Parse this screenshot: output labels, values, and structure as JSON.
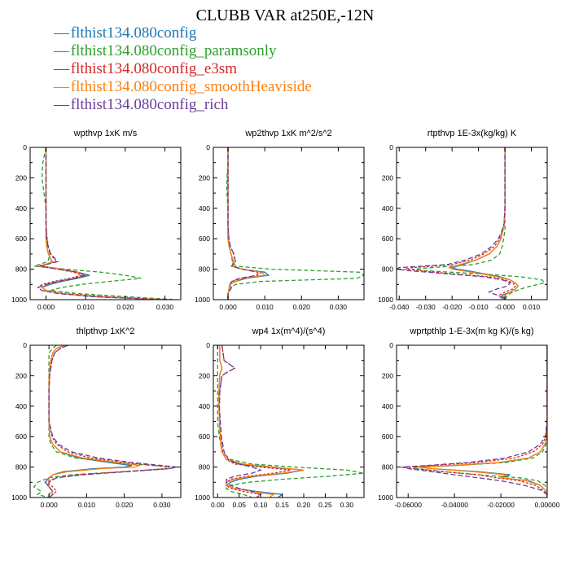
{
  "title": "CLUBB VAR at250E,-12N",
  "legend": [
    {
      "name": "flthist134.080config",
      "color": "#1f77b4"
    },
    {
      "name": "flthist134.080config_paramsonly",
      "color": "#2ca02c"
    },
    {
      "name": "flthist134.080config_e3sm",
      "color": "#d62728"
    },
    {
      "name": "flthist134.080config_smoothHeaviside",
      "color": "#ff7f0e"
    },
    {
      "name": "flthist134.080config_rich",
      "color": "#6a3d9a"
    }
  ],
  "chart_data": [
    {
      "type": "line",
      "title": "wpthvp  1xK m/s",
      "ylim": [
        1000,
        0
      ],
      "xlim": [
        -0.004,
        0.034
      ],
      "xticks": [
        "0.000",
        "0.010",
        "0.020",
        "0.030"
      ],
      "xtick_values": [
        0.0,
        0.01,
        0.02,
        0.03
      ],
      "yticks": [
        "0",
        "200",
        "400",
        "600",
        "800",
        "1000"
      ],
      "y": [
        0,
        100,
        200,
        300,
        400,
        500,
        600,
        650,
        700,
        750,
        780,
        800,
        820,
        840,
        860,
        880,
        900,
        920,
        940,
        960,
        980,
        1000
      ],
      "series": [
        {
          "x": [
            0.0,
            0.0,
            0.0,
            0.0,
            0.0,
            0.0,
            0.0,
            0.0002,
            0.0006,
            0.0015,
            -0.001,
            0.004,
            0.008,
            0.011,
            0.008,
            0.004,
            0.001,
            -0.001,
            0.0,
            0.004,
            0.012,
            0.03
          ]
        },
        {
          "x": [
            0.0,
            -0.0008,
            -0.001,
            -0.0005,
            0.0,
            0.0,
            0.0002,
            0.0005,
            0.001,
            0.0005,
            -0.003,
            0.005,
            0.014,
            0.02,
            0.024,
            0.016,
            0.009,
            0.004,
            0.001,
            0.008,
            0.02,
            0.033
          ]
        },
        {
          "x": [
            0.0,
            0.0,
            0.0,
            0.0,
            0.0,
            0.0,
            0.0003,
            0.0006,
            0.0012,
            0.0025,
            -0.002,
            0.003,
            0.007,
            0.009,
            0.006,
            0.002,
            -0.001,
            -0.002,
            -0.001,
            0.005,
            0.015,
            0.031
          ]
        },
        {
          "x": [
            0.0,
            0.0,
            0.0,
            0.0,
            0.0,
            0.0,
            0.0,
            0.0002,
            0.0006,
            0.0016,
            -0.001,
            0.004,
            0.008,
            0.01,
            0.007,
            0.003,
            0.0,
            -0.001,
            0.0,
            0.004,
            0.013,
            0.03
          ]
        },
        {
          "x": [
            0.0,
            0.0,
            0.0,
            0.0,
            0.0,
            0.0,
            0.0002,
            0.0005,
            0.0012,
            0.003,
            -0.0015,
            0.003,
            0.008,
            0.01,
            0.007,
            0.003,
            0.0,
            -0.002,
            -0.001,
            0.003,
            0.012,
            0.029
          ]
        }
      ]
    },
    {
      "type": "line",
      "title": "wp2thvp  1xK m^2/s^2",
      "ylim": [
        1000,
        0
      ],
      "xlim": [
        -0.004,
        0.037
      ],
      "xticks": [
        "0.000",
        "0.010",
        "0.020",
        "0.030"
      ],
      "xtick_values": [
        0.0,
        0.01,
        0.02,
        0.03
      ],
      "yticks": [
        "0",
        "200",
        "400",
        "600",
        "800",
        "1000"
      ],
      "y": [
        0,
        100,
        200,
        300,
        400,
        500,
        600,
        650,
        700,
        750,
        780,
        800,
        820,
        840,
        860,
        880,
        900,
        920,
        940,
        960,
        980,
        1000
      ],
      "series": [
        {
          "x": [
            0.0,
            0.0,
            0.0,
            0.0,
            0.0,
            0.0,
            0.0,
            0.0003,
            0.0008,
            0.0015,
            0.001,
            0.004,
            0.01,
            0.011,
            0.005,
            0.002,
            0.0005,
            0.0003,
            0.0002,
            0.0,
            0.0,
            0.0
          ]
        },
        {
          "x": [
            0.0,
            0.0,
            -0.0003,
            -0.0003,
            0.0,
            0.0,
            0.0,
            0.0003,
            0.0008,
            0.0012,
            0.002,
            0.012,
            0.036,
            0.037,
            0.035,
            0.009,
            0.002,
            0.001,
            0.0005,
            0.0,
            0.0,
            0.0
          ]
        },
        {
          "x": [
            0.0,
            0.0,
            0.0,
            0.0,
            0.0,
            0.0,
            0.0002,
            0.0006,
            0.0015,
            0.002,
            0.001,
            0.004,
            0.009,
            0.008,
            0.004,
            0.001,
            0.0005,
            0.0008,
            0.0004,
            0.0,
            0.0,
            0.0
          ]
        },
        {
          "x": [
            0.0,
            0.0,
            0.0,
            0.0,
            0.0,
            0.0,
            0.0,
            0.0003,
            0.0008,
            0.0015,
            0.001,
            0.004,
            0.009,
            0.01,
            0.004,
            0.002,
            0.0005,
            0.0003,
            0.0002,
            0.0,
            0.0,
            0.0
          ]
        },
        {
          "x": [
            0.0,
            0.0,
            0.0,
            0.0,
            0.0,
            0.0,
            0.0002,
            0.0006,
            0.0016,
            0.002,
            0.001,
            0.004,
            0.008,
            0.008,
            0.003,
            0.001,
            0.0005,
            0.0009,
            0.0004,
            0.0,
            0.0,
            0.0
          ]
        }
      ]
    },
    {
      "type": "line",
      "title": "rtpthvp  1E-3x(kg/kg) K",
      "ylim": [
        1000,
        0
      ],
      "xlim": [
        -0.041,
        0.016
      ],
      "xticks": [
        "-0.040",
        "-0.030",
        "-0.020",
        "-0.010",
        "-0.000",
        "0.010"
      ],
      "xtick_values": [
        -0.04,
        -0.03,
        -0.02,
        -0.01,
        0.0,
        0.01
      ],
      "yticks": [
        "0",
        "200",
        "400",
        "600",
        "800",
        "1000"
      ],
      "y": [
        0,
        100,
        200,
        300,
        400,
        500,
        550,
        600,
        650,
        700,
        740,
        770,
        790,
        800,
        810,
        830,
        850,
        870,
        890,
        910,
        930,
        950,
        970,
        1000
      ],
      "series": [
        {
          "x": [
            0.0,
            0.0,
            0.0,
            0.0,
            0.0,
            -0.0003,
            -0.0008,
            -0.0015,
            -0.003,
            -0.006,
            -0.011,
            -0.016,
            -0.02,
            -0.018,
            -0.014,
            -0.008,
            -0.002,
            0.002,
            0.004,
            0.005,
            0.004,
            0.002,
            -0.001,
            0.0
          ]
        },
        {
          "x": [
            0.0,
            0.0,
            0.0,
            0.0,
            0.0,
            0.0,
            0.0,
            -0.0005,
            -0.001,
            -0.002,
            -0.005,
            -0.012,
            -0.028,
            -0.035,
            -0.03,
            -0.01,
            0.006,
            0.014,
            0.015,
            0.01,
            0.006,
            0.003,
            0.001,
            0.0
          ]
        },
        {
          "x": [
            0.0,
            0.0,
            0.0,
            0.0,
            0.0,
            -0.0003,
            -0.001,
            -0.002,
            -0.004,
            -0.008,
            -0.013,
            -0.02,
            -0.035,
            -0.038,
            -0.032,
            -0.02,
            -0.006,
            0.0,
            0.003,
            0.004,
            0.003,
            0.0,
            -0.002,
            0.0
          ]
        },
        {
          "x": [
            0.0,
            0.0,
            0.0,
            0.0,
            0.0,
            -0.0002,
            -0.0008,
            -0.0015,
            -0.003,
            -0.006,
            -0.011,
            -0.017,
            -0.021,
            -0.02,
            -0.016,
            -0.009,
            -0.003,
            0.002,
            0.004,
            0.005,
            0.004,
            0.002,
            0.0,
            0.0
          ]
        },
        {
          "x": [
            0.0,
            0.0,
            0.0,
            0.0,
            0.0,
            -0.0003,
            -0.0012,
            -0.0025,
            -0.005,
            -0.009,
            -0.015,
            -0.022,
            -0.04,
            -0.041,
            -0.036,
            -0.022,
            -0.008,
            -0.001,
            0.002,
            0.001,
            -0.003,
            -0.006,
            -0.003,
            0.0
          ]
        }
      ]
    },
    {
      "type": "line",
      "title": "thlpthvp  1xK^2",
      "ylim": [
        1000,
        0
      ],
      "xlim": [
        -0.005,
        0.035
      ],
      "xticks": [
        "0.000",
        "0.010",
        "0.020",
        "0.030"
      ],
      "xtick_values": [
        0.0,
        0.01,
        0.02,
        0.03
      ],
      "yticks": [
        "0",
        "200",
        "400",
        "600",
        "800",
        "1000"
      ],
      "y": [
        0,
        20,
        50,
        100,
        200,
        300,
        400,
        500,
        600,
        650,
        700,
        740,
        770,
        790,
        800,
        810,
        830,
        850,
        870,
        900,
        930,
        960,
        980,
        1000
      ],
      "series": [
        {
          "x": [
            0.004,
            0.002,
            0.001,
            0.0005,
            0.0,
            0.0,
            0.0,
            0.0,
            0.0002,
            0.001,
            0.003,
            0.008,
            0.016,
            0.022,
            0.02,
            0.012,
            0.004,
            0.001,
            0.0,
            -0.001,
            0.0,
            0.001,
            0.0,
            0.0
          ]
        },
        {
          "x": [
            0.002,
            0.001,
            0.0,
            0.0,
            0.0,
            0.0,
            0.0,
            0.0,
            0.0,
            0.0005,
            0.002,
            0.007,
            0.017,
            0.028,
            0.034,
            0.032,
            0.02,
            0.006,
            0.0,
            -0.003,
            -0.004,
            -0.002,
            -0.003,
            0.0
          ]
        },
        {
          "x": [
            0.005,
            0.003,
            0.0015,
            0.0008,
            0.0002,
            0.0,
            0.0,
            0.0,
            0.0008,
            0.002,
            0.005,
            0.011,
            0.02,
            0.028,
            0.032,
            0.031,
            0.02,
            0.008,
            0.002,
            -0.001,
            0.001,
            0.002,
            0.001,
            0.0
          ]
        },
        {
          "x": [
            0.004,
            0.002,
            0.001,
            0.0005,
            0.0,
            0.0,
            0.0,
            0.0,
            0.0002,
            0.001,
            0.003,
            0.009,
            0.018,
            0.024,
            0.023,
            0.014,
            0.005,
            0.001,
            0.0,
            0.0,
            0.0,
            0.001,
            0.0,
            0.0
          ]
        },
        {
          "x": [
            0.005,
            0.003,
            0.0015,
            0.0008,
            0.0002,
            0.0,
            0.0,
            0.0,
            0.001,
            0.0025,
            0.006,
            0.013,
            0.022,
            0.03,
            0.034,
            0.032,
            0.021,
            0.009,
            0.002,
            0.0,
            0.0,
            0.001,
            0.001,
            0.0
          ]
        }
      ]
    },
    {
      "type": "line",
      "title": "wp4  1x(m^4)/(s^4)",
      "ylim": [
        1000,
        0
      ],
      "xlim": [
        -0.01,
        0.34
      ],
      "xticks": [
        "0.00",
        "0.05",
        "0.10",
        "0.15",
        "0.20",
        "0.25",
        "0.30"
      ],
      "xtick_values": [
        0.0,
        0.05,
        0.1,
        0.15,
        0.2,
        0.25,
        0.3
      ],
      "yticks": [
        "0",
        "200",
        "400",
        "600",
        "800",
        "1000"
      ],
      "y": [
        0,
        100,
        130,
        150,
        180,
        200,
        300,
        400,
        500,
        600,
        700,
        750,
        780,
        800,
        820,
        840,
        860,
        880,
        900,
        920,
        940,
        960,
        980,
        1000
      ],
      "series": [
        {
          "x": [
            0.005,
            0.005,
            0.008,
            0.01,
            0.006,
            0.005,
            0.003,
            0.003,
            0.004,
            0.006,
            0.01,
            0.02,
            0.05,
            0.12,
            0.2,
            0.16,
            0.09,
            0.05,
            0.03,
            0.02,
            0.04,
            0.09,
            0.15,
            0.14
          ]
        },
        {
          "x": [
            0.0,
            0.0,
            0.0,
            0.0,
            0.0,
            0.0,
            0.0,
            0.0,
            0.0,
            0.004,
            0.01,
            0.03,
            0.08,
            0.18,
            0.3,
            0.34,
            0.26,
            0.15,
            0.07,
            0.03,
            0.02,
            0.03,
            0.06,
            0.08
          ]
        },
        {
          "x": [
            0.01,
            0.015,
            0.03,
            0.04,
            0.02,
            0.01,
            0.005,
            0.004,
            0.005,
            0.007,
            0.012,
            0.02,
            0.04,
            0.1,
            0.17,
            0.13,
            0.07,
            0.03,
            0.02,
            0.02,
            0.03,
            0.06,
            0.1,
            0.09
          ]
        },
        {
          "x": [
            0.005,
            0.005,
            0.008,
            0.01,
            0.006,
            0.005,
            0.003,
            0.003,
            0.004,
            0.006,
            0.01,
            0.02,
            0.06,
            0.13,
            0.2,
            0.15,
            0.08,
            0.04,
            0.02,
            0.02,
            0.04,
            0.08,
            0.13,
            0.12
          ]
        },
        {
          "x": [
            0.01,
            0.015,
            0.03,
            0.04,
            0.02,
            0.01,
            0.005,
            0.004,
            0.006,
            0.009,
            0.015,
            0.025,
            0.05,
            0.08,
            0.1,
            0.08,
            0.04,
            0.02,
            0.02,
            0.03,
            0.05,
            0.08,
            0.1,
            0.09
          ]
        }
      ]
    },
    {
      "type": "line",
      "title": "wprtpthlp  1-E-3x(m kg K)/(s kg)",
      "ylim": [
        1000,
        0
      ],
      "xlim": [
        -0.065,
        0.0
      ],
      "xticks": [
        "-0.06000",
        "-0.04000",
        "-0.02000",
        "0.00000"
      ],
      "xtick_values": [
        -0.06,
        -0.04,
        -0.02,
        0.0
      ],
      "yticks": [
        "0",
        "200",
        "400",
        "600",
        "800",
        "1000"
      ],
      "y": [
        0,
        200,
        400,
        500,
        600,
        650,
        700,
        740,
        770,
        790,
        800,
        810,
        830,
        850,
        870,
        890,
        920,
        950,
        980,
        1000
      ],
      "series": [
        {
          "x": [
            0.0,
            0.0,
            0.0,
            0.0,
            -0.0002,
            -0.001,
            -0.003,
            -0.008,
            -0.02,
            -0.04,
            -0.055,
            -0.05,
            -0.03,
            -0.016,
            -0.02,
            -0.008,
            -0.003,
            -0.001,
            0.0,
            0.0
          ]
        },
        {
          "x": [
            0.0,
            0.0,
            0.0,
            0.0,
            0.0,
            -0.0005,
            -0.002,
            -0.006,
            -0.018,
            -0.04,
            -0.058,
            -0.056,
            -0.045,
            -0.03,
            -0.012,
            -0.004,
            -0.001,
            0.0,
            0.0,
            0.0
          ]
        },
        {
          "x": [
            0.0,
            0.0,
            0.0,
            0.0,
            -0.0006,
            -0.002,
            -0.006,
            -0.014,
            -0.03,
            -0.05,
            -0.062,
            -0.058,
            -0.045,
            -0.03,
            -0.022,
            -0.012,
            -0.005,
            -0.002,
            0.0,
            0.0
          ]
        },
        {
          "x": [
            0.0,
            0.0,
            0.0,
            0.0,
            -0.0002,
            -0.001,
            -0.003,
            -0.008,
            -0.021,
            -0.041,
            -0.056,
            -0.05,
            -0.032,
            -0.018,
            -0.02,
            -0.009,
            -0.003,
            -0.001,
            0.0,
            0.0
          ]
        },
        {
          "x": [
            0.0,
            0.0,
            0.0,
            0.0,
            -0.0008,
            -0.003,
            -0.008,
            -0.018,
            -0.034,
            -0.052,
            -0.063,
            -0.06,
            -0.05,
            -0.04,
            -0.03,
            -0.02,
            -0.01,
            -0.003,
            0.0,
            0.0
          ]
        }
      ]
    }
  ]
}
